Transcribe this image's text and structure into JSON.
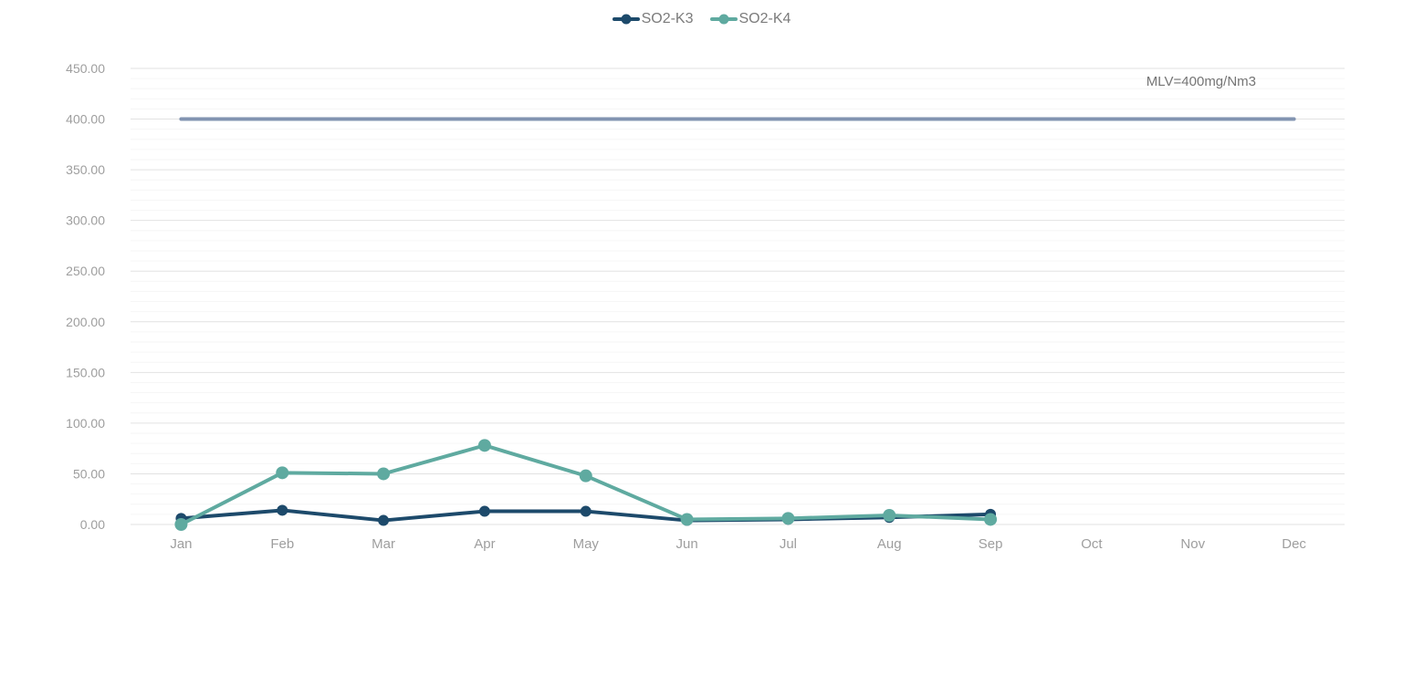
{
  "page": {
    "background_color": "#ffffff"
  },
  "chart_data": {
    "type": "line",
    "title": "",
    "xlabel": "",
    "ylabel": "",
    "categories": [
      "Jan",
      "Feb",
      "Mar",
      "Apr",
      "May",
      "Jun",
      "Jul",
      "Aug",
      "Sep",
      "Oct",
      "Nov",
      "Dec"
    ],
    "series": [
      {
        "name": "SO2-K3",
        "color": "#1d4a6b",
        "marker_radius": 6,
        "values": [
          6,
          14,
          4,
          13,
          13,
          4,
          5,
          7,
          10,
          null,
          null,
          null
        ]
      },
      {
        "name": "SO2-K4",
        "color": "#5faaa0",
        "marker_radius": 7,
        "values": [
          0,
          51,
          50,
          78,
          48,
          5,
          6,
          9,
          5,
          null,
          null,
          null
        ]
      }
    ],
    "reference_line": {
      "label": "MLV=400mg/Nm3",
      "value": 400,
      "color": "#8294b1",
      "x_start": "Jan",
      "x_end": "Dec"
    },
    "y_axis": {
      "min": 0,
      "max": 450,
      "major_step": 50,
      "minor_step": 10,
      "tick_labels": [
        "0.00",
        "50.00",
        "100.00",
        "150.00",
        "200.00",
        "250.00",
        "300.00",
        "350.00",
        "400.00",
        "450.00"
      ]
    },
    "legend_position": "top-center",
    "grid": {
      "major_color": "#e2e2e2",
      "minor_color": "#f6f6f6"
    },
    "axis_text_color": "#9e9e9e",
    "legend_text_color": "#7b7b7b",
    "annotation_text_color": "#757575"
  }
}
